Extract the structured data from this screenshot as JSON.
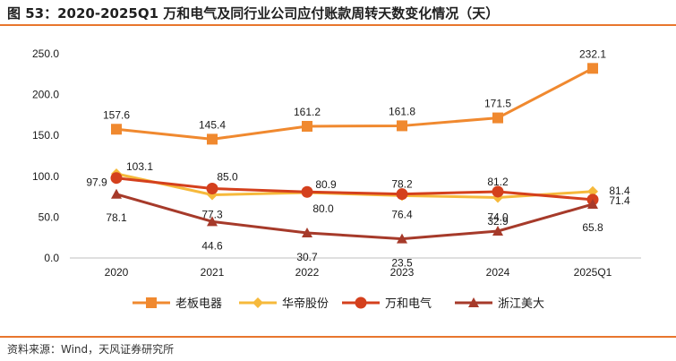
{
  "figure": {
    "title": "图 53：2020-2025Q1 万和电气及同行业公司应付账款周转天数变化情况（天）",
    "source": "资料来源：Wind，天风证券研究所",
    "accent_color": "#E8762D"
  },
  "chart_data": {
    "type": "line",
    "title": "",
    "xlabel": "",
    "ylabel": "",
    "categories": [
      "2020",
      "2021",
      "2022",
      "2023",
      "2024",
      "2025Q1"
    ],
    "ylim": [
      0,
      250
    ],
    "yticks": [
      "0.0",
      "50.0",
      "100.0",
      "150.0",
      "200.0",
      "250.0"
    ],
    "grid": false,
    "legend_position": "bottom",
    "series": [
      {
        "name": "老板电器",
        "color": "#F0892F",
        "marker": "square",
        "values": [
          157.6,
          145.4,
          161.2,
          161.8,
          171.5,
          232.1
        ],
        "labels": [
          "157.6",
          "145.4",
          "161.2",
          "161.8",
          "171.5",
          "232.1"
        ]
      },
      {
        "name": "华帝股份",
        "color": "#F6B93B",
        "marker": "diamond",
        "values": [
          103.1,
          77.3,
          80.0,
          76.4,
          74.0,
          81.4
        ],
        "labels": [
          "103.1",
          "77.3",
          "80.0",
          "76.4",
          "74.0",
          "81.4"
        ]
      },
      {
        "name": "万和电气",
        "color": "#D4401D",
        "marker": "circle",
        "values": [
          97.9,
          85.0,
          80.9,
          78.2,
          81.2,
          71.4
        ],
        "labels": [
          "97.9",
          "85.0",
          "80.9",
          "78.2",
          "81.2",
          "71.4"
        ]
      },
      {
        "name": "浙江美大",
        "color": "#A63A2A",
        "marker": "triangle",
        "values": [
          78.1,
          44.6,
          30.7,
          23.5,
          32.9,
          65.8
        ],
        "labels": [
          "78.1",
          "44.6",
          "30.7",
          "23.5",
          "32.9",
          "65.8"
        ]
      }
    ]
  }
}
